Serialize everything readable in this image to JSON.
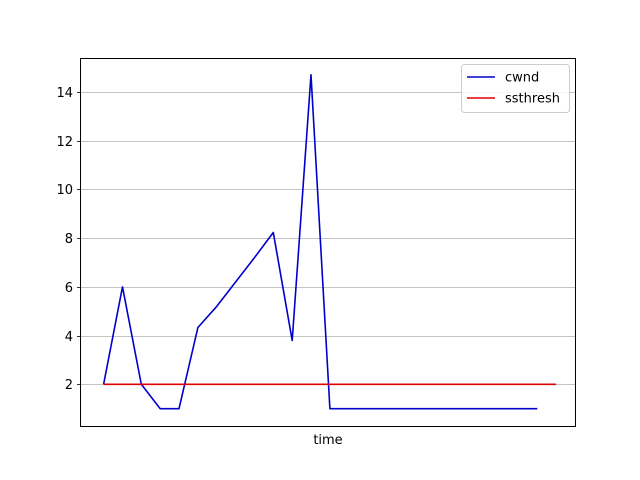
{
  "chart_data": {
    "type": "line",
    "title": "",
    "xlabel": "time",
    "ylabel": "",
    "ylim": [
      0.29,
      15.35
    ],
    "xlim": [
      -1.2,
      25.0
    ],
    "grid": "horizontal",
    "legend_position": "top-right",
    "y_ticks": [
      2,
      4,
      6,
      8,
      10,
      12,
      14
    ],
    "series": [
      {
        "name": "cwnd",
        "color": "#0000cc",
        "x": [
          0,
          1,
          2,
          3,
          4,
          5,
          6,
          7,
          8,
          9,
          10,
          11,
          12,
          13,
          14,
          15,
          16,
          17,
          18,
          19,
          20,
          21,
          22,
          23
        ],
        "y": [
          2,
          6,
          2,
          1,
          1,
          4.33,
          5.2,
          6.2,
          7.2,
          8.23,
          3.8,
          14.7,
          1,
          1,
          1,
          1,
          1,
          1,
          1,
          1,
          1,
          1,
          1,
          1
        ]
      },
      {
        "name": "ssthresh",
        "color": "#dd0000",
        "x": [
          0,
          24
        ],
        "y": [
          2,
          2
        ]
      }
    ]
  }
}
